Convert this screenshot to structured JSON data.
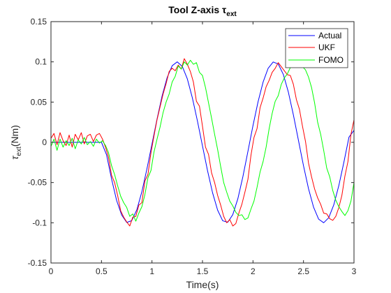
{
  "chart_data": {
    "type": "line",
    "title": "Tool Z-axis τ",
    "title_subscript": "ext",
    "xlabel": "Time(s)",
    "ylabel_symbol": "τ",
    "ylabel_subscript": "ext",
    "ylabel_suffix": "(Nm)",
    "xlim": [
      0,
      3
    ],
    "ylim": [
      -0.15,
      0.15
    ],
    "xticks": [
      0,
      0.5,
      1,
      1.5,
      2,
      2.5,
      3
    ],
    "xtick_labels": [
      "0",
      "0.5",
      "1",
      "1.5",
      "2",
      "2.5",
      "3"
    ],
    "yticks": [
      -0.15,
      -0.1,
      -0.05,
      0,
      0.05,
      0.1,
      0.15
    ],
    "ytick_labels": [
      "-0.15",
      "-0.1",
      "-0.05",
      "0",
      "0.05",
      "0.1",
      "0.15"
    ],
    "grid": false,
    "legend_position": "top-right",
    "series": [
      {
        "name": "Actual",
        "color": "#0000ff",
        "x": [
          0,
          0.5,
          0.55,
          0.6,
          0.65,
          0.7,
          0.75,
          0.8,
          0.85,
          0.9,
          0.95,
          1.0,
          1.05,
          1.1,
          1.15,
          1.2,
          1.25,
          1.3,
          1.35,
          1.4,
          1.45,
          1.5,
          1.55,
          1.6,
          1.65,
          1.7,
          1.75,
          1.8,
          1.85,
          1.9,
          1.95,
          2.0,
          2.05,
          2.1,
          2.15,
          2.2,
          2.25,
          2.3,
          2.35,
          2.4,
          2.45,
          2.5,
          2.55,
          2.6,
          2.65,
          2.7,
          2.75,
          2.8,
          2.85,
          2.9,
          2.95,
          3.0
        ],
        "y": [
          0,
          0,
          -0.0154,
          -0.0456,
          -0.0723,
          -0.0904,
          -0.0996,
          -0.0973,
          -0.0839,
          -0.0614,
          -0.033,
          -0.0021,
          0.0289,
          0.0575,
          0.0804,
          0.0952,
          0.1,
          0.0943,
          0.0788,
          0.0552,
          0.0265,
          -0.0045,
          -0.0352,
          -0.0628,
          -0.0843,
          -0.0975,
          -0.0994,
          -0.0899,
          -0.0702,
          -0.0427,
          -0.0112,
          0.0208,
          0.0503,
          0.0748,
          0.092,
          0.0999,
          0.0973,
          0.0845,
          0.0625,
          0.034,
          0.0025,
          -0.0291,
          -0.0578,
          -0.0807,
          -0.0955,
          -0.1,
          -0.0937,
          -0.0777,
          -0.0537,
          -0.0247,
          0.0063,
          0.0149
        ]
      },
      {
        "name": "UKF",
        "color": "#ff0000",
        "x": [
          0,
          0.03,
          0.06,
          0.09,
          0.12,
          0.15,
          0.18,
          0.21,
          0.24,
          0.27,
          0.3,
          0.33,
          0.36,
          0.39,
          0.42,
          0.45,
          0.48,
          0.51,
          0.54,
          0.57,
          0.6,
          0.63,
          0.66,
          0.69,
          0.72,
          0.75,
          0.78,
          0.81,
          0.84,
          0.87,
          0.9,
          0.93,
          0.96,
          0.99,
          1.02,
          1.05,
          1.08,
          1.11,
          1.14,
          1.17,
          1.2,
          1.23,
          1.26,
          1.29,
          1.32,
          1.35,
          1.38,
          1.41,
          1.44,
          1.47,
          1.5,
          1.53,
          1.56,
          1.59,
          1.62,
          1.65,
          1.68,
          1.71,
          1.74,
          1.77,
          1.8,
          1.83,
          1.86,
          1.89,
          1.92,
          1.95,
          1.98,
          2.01,
          2.04,
          2.07,
          2.1,
          2.13,
          2.16,
          2.19,
          2.22,
          2.25,
          2.28,
          2.31,
          2.34,
          2.37,
          2.4,
          2.43,
          2.46,
          2.49,
          2.52,
          2.55,
          2.58,
          2.61,
          2.64,
          2.67,
          2.7,
          2.73,
          2.76,
          2.79,
          2.82,
          2.85,
          2.88,
          2.91,
          2.94,
          2.97,
          3.0
        ],
        "y": [
          0.005,
          0.011,
          -0.003,
          0.012,
          0.002,
          -0.004,
          0.009,
          -0.006,
          0.01,
          0.003,
          0.012,
          -0.002,
          0.008,
          0.01,
          0.001,
          0.009,
          0.011,
          0.004,
          -0.006,
          -0.019,
          -0.041,
          -0.05,
          -0.066,
          -0.085,
          -0.093,
          -0.099,
          -0.104,
          -0.093,
          -0.092,
          -0.078,
          -0.075,
          -0.048,
          -0.04,
          -0.013,
          0.008,
          0.028,
          0.044,
          0.06,
          0.073,
          0.088,
          0.092,
          0.089,
          0.096,
          0.091,
          0.104,
          0.097,
          0.088,
          0.075,
          0.051,
          0.045,
          0.02,
          -0.006,
          -0.015,
          -0.038,
          -0.05,
          -0.066,
          -0.078,
          -0.092,
          -0.1,
          -0.096,
          -0.104,
          -0.101,
          -0.088,
          -0.077,
          -0.062,
          -0.046,
          -0.016,
          0.006,
          0.017,
          0.043,
          0.055,
          0.069,
          0.077,
          0.087,
          0.092,
          0.099,
          0.094,
          0.089,
          0.084,
          0.083,
          0.072,
          0.053,
          0.041,
          0.02,
          0.001,
          -0.026,
          -0.043,
          -0.058,
          -0.069,
          -0.077,
          -0.088,
          -0.089,
          -0.095,
          -0.097,
          -0.092,
          -0.081,
          -0.066,
          -0.042,
          -0.024,
          0.01,
          0.028
        ]
      },
      {
        "name": "FOMO",
        "color": "#00ff00",
        "x": [
          0,
          0.03,
          0.06,
          0.09,
          0.12,
          0.15,
          0.18,
          0.21,
          0.24,
          0.27,
          0.3,
          0.33,
          0.36,
          0.39,
          0.42,
          0.45,
          0.48,
          0.51,
          0.54,
          0.57,
          0.6,
          0.63,
          0.66,
          0.69,
          0.72,
          0.75,
          0.78,
          0.81,
          0.84,
          0.87,
          0.9,
          0.93,
          0.96,
          0.99,
          1.02,
          1.05,
          1.08,
          1.11,
          1.14,
          1.17,
          1.2,
          1.23,
          1.26,
          1.29,
          1.32,
          1.35,
          1.38,
          1.41,
          1.44,
          1.47,
          1.5,
          1.53,
          1.56,
          1.59,
          1.62,
          1.65,
          1.68,
          1.71,
          1.74,
          1.77,
          1.8,
          1.83,
          1.86,
          1.89,
          1.92,
          1.95,
          1.98,
          2.01,
          2.04,
          2.07,
          2.1,
          2.13,
          2.16,
          2.19,
          2.22,
          2.25,
          2.28,
          2.31,
          2.34,
          2.37,
          2.4,
          2.43,
          2.46,
          2.49,
          2.52,
          2.55,
          2.58,
          2.61,
          2.64,
          2.67,
          2.7,
          2.73,
          2.76,
          2.79,
          2.82,
          2.85,
          2.88,
          2.91,
          2.94,
          2.97,
          3.0
        ],
        "y": [
          -0.005,
          0.004,
          -0.01,
          0.004,
          -0.006,
          0.002,
          -0.004,
          0.005,
          -0.008,
          0.003,
          -0.002,
          0.006,
          -0.003,
          0.001,
          -0.005,
          0.004,
          -0.001,
          0.002,
          -0.004,
          -0.013,
          -0.029,
          -0.04,
          -0.054,
          -0.067,
          -0.075,
          -0.081,
          -0.092,
          -0.089,
          -0.098,
          -0.088,
          -0.08,
          -0.065,
          -0.044,
          -0.035,
          -0.012,
          0.004,
          0.019,
          0.037,
          0.05,
          0.06,
          0.075,
          0.082,
          0.095,
          0.091,
          0.1,
          0.096,
          0.102,
          0.097,
          0.099,
          0.087,
          0.083,
          0.068,
          0.049,
          0.03,
          0.01,
          -0.009,
          -0.03,
          -0.05,
          -0.062,
          -0.073,
          -0.079,
          -0.087,
          -0.091,
          -0.09,
          -0.096,
          -0.094,
          -0.083,
          -0.073,
          -0.056,
          -0.037,
          -0.024,
          -0.006,
          0.017,
          0.036,
          0.051,
          0.058,
          0.072,
          0.08,
          0.085,
          0.093,
          0.099,
          0.096,
          0.1,
          0.094,
          0.09,
          0.081,
          0.068,
          0.049,
          0.025,
          0.01,
          -0.01,
          -0.032,
          -0.043,
          -0.06,
          -0.072,
          -0.08,
          -0.086,
          -0.091,
          -0.085,
          -0.073,
          -0.05
        ]
      }
    ]
  }
}
